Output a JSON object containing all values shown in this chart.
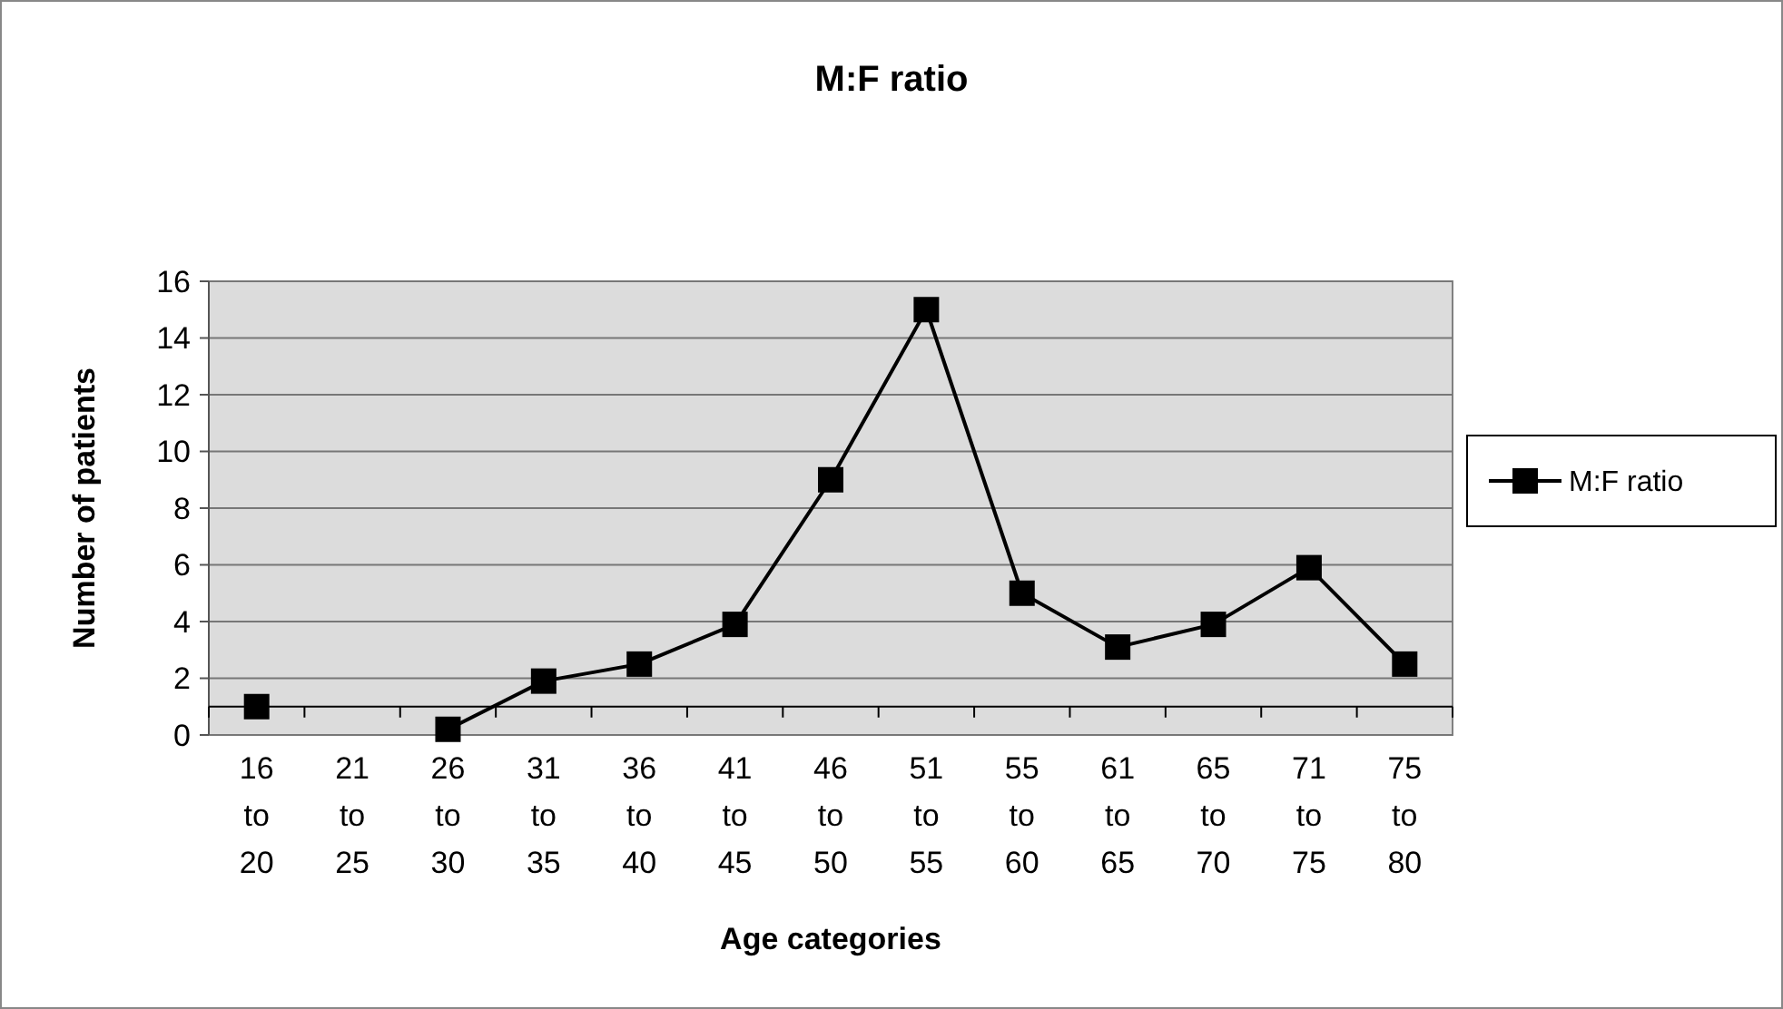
{
  "chart_data": {
    "type": "line",
    "title": "M:F ratio",
    "xlabel": "Age categories",
    "ylabel": "Number of patients",
    "categories": [
      "16 to 20",
      "21 to 25",
      "26 to 30",
      "31 to 35",
      "36 to 40",
      "41 to 45",
      "46 to 50",
      "51 to 55",
      "55 to 60",
      "61 to 65",
      "65 to 70",
      "71 to 75",
      "75 to 80"
    ],
    "series": [
      {
        "name": "M:F ratio",
        "color": "#000000",
        "values": [
          1,
          null,
          0.2,
          1.9,
          2.5,
          3.9,
          9,
          15,
          5,
          3.1,
          3.9,
          5.9,
          2.5
        ]
      }
    ],
    "ylim": [
      0,
      16
    ],
    "yticks": [
      0,
      2,
      4,
      6,
      8,
      10,
      12,
      14,
      16
    ],
    "grid": "y",
    "legend": "right",
    "marker": "square",
    "line_style": "solid",
    "ref_lines": [
      {
        "axis": "y",
        "value": 1,
        "color": "#000000"
      }
    ]
  }
}
